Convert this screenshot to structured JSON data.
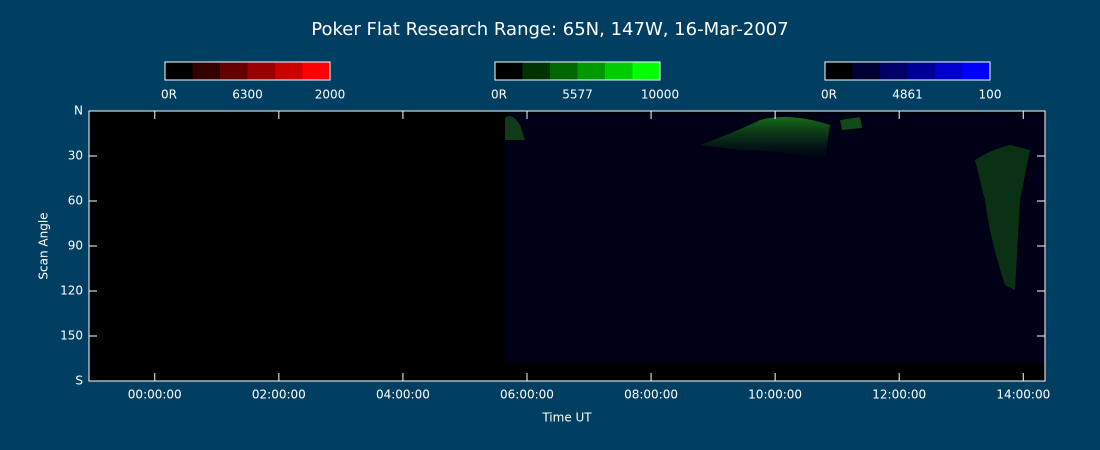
{
  "chart_data": {
    "type": "keogram",
    "title": "Poker Flat Research Range: 65N, 147W, 16-Mar-2007",
    "x_label": "Time UT",
    "y_label": "Scan Angle",
    "xlim": [
      -1.06,
      14.35
    ],
    "xticks": [
      {
        "value": 0,
        "label": "00:00:00"
      },
      {
        "value": 2,
        "label": "02:00:00"
      },
      {
        "value": 4,
        "label": "04:00:00"
      },
      {
        "value": 6,
        "label": "06:00:00"
      },
      {
        "value": 8,
        "label": "08:00:00"
      },
      {
        "value": 10,
        "label": "10:00:00"
      },
      {
        "value": 12,
        "label": "12:00:00"
      },
      {
        "value": 14,
        "label": "14:00:00"
      }
    ],
    "ylim": [
      0,
      180
    ],
    "yticks": [
      {
        "value": 0,
        "label": "N"
      },
      30,
      60,
      90,
      120,
      150,
      {
        "value": 180,
        "label": "S"
      }
    ],
    "colorbars": [
      {
        "labels": [
          "0R",
          "6300",
          "2000"
        ],
        "colors": [
          "#000000",
          "#330000",
          "#660000",
          "#990000",
          "#cc0000",
          "#ff0000"
        ]
      },
      {
        "labels": [
          "0R",
          "5577",
          "10000"
        ],
        "colors": [
          "#000000",
          "#003300",
          "#006600",
          "#009900",
          "#00cc00",
          "#00ff00"
        ]
      },
      {
        "labels": [
          "0R",
          "4861",
          "100"
        ],
        "colors": [
          "#000000",
          "#000033",
          "#000066",
          "#000099",
          "#0000cc",
          "#0000ff"
        ]
      }
    ]
  }
}
